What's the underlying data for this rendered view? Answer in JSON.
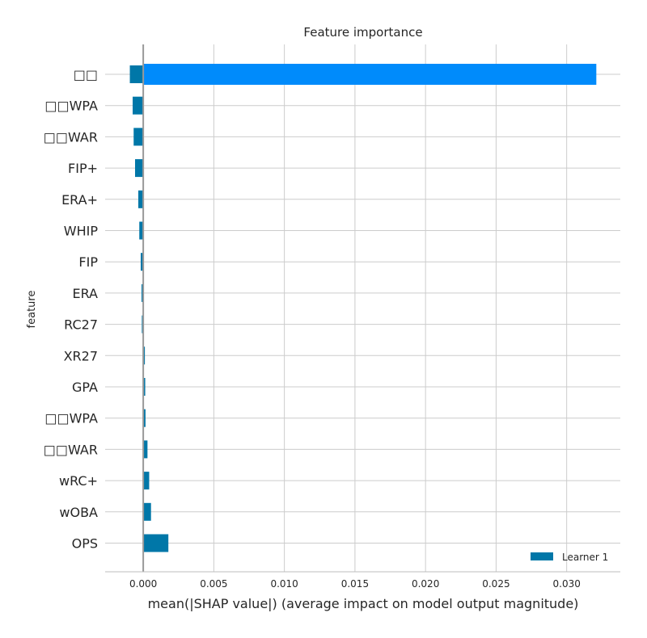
{
  "chart_data": {
    "type": "bar",
    "title": "Feature importance",
    "xlabel": "mean(|SHAP value|) (average impact on model output magnitude)",
    "ylabel": "feature",
    "xlim": [
      -0.0027,
      0.0338
    ],
    "xticks": [
      "0.000",
      "0.005",
      "0.010",
      "0.015",
      "0.020",
      "0.025",
      "0.030"
    ],
    "xtick_values": [
      0,
      0.005,
      0.01,
      0.015,
      0.02,
      0.025,
      0.03
    ],
    "grid": true,
    "legend_position": "bottom-right",
    "categories": [
      "□□",
      "□□WPA",
      "□□WAR",
      "FIP+",
      "ERA+",
      "WHIP",
      "FIP",
      "ERA",
      "RC27",
      "XR27",
      "GPA",
      "□□WPA",
      "□□WAR",
      "wRC+",
      "wOBA",
      "OPS"
    ],
    "series": [
      {
        "name": "Learner 1",
        "values": [
          -0.00095,
          -0.00075,
          -0.00068,
          -0.00058,
          -0.00035,
          -0.00028,
          -0.00018,
          -0.00012,
          -0.0001,
          8e-05,
          0.00014,
          0.00016,
          0.0003,
          0.00042,
          0.00055,
          0.00178
        ]
      }
    ],
    "highlight": {
      "category": "□□",
      "value": 0.0321
    }
  },
  "colors": {
    "series": "#0077a8",
    "highlight": "#008bfb",
    "grid": "#cccccc",
    "axis": "#bdbdbd",
    "zero_line": "#999999"
  }
}
